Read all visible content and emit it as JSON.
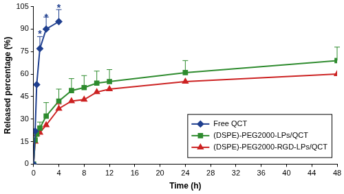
{
  "chart_data": {
    "type": "line",
    "x_label": "Time (h)",
    "y_label": "Released percentage (%)",
    "xlim": [
      0,
      48
    ],
    "xticks": [
      0,
      4,
      8,
      12,
      16,
      20,
      24,
      28,
      32,
      36,
      40,
      44,
      48
    ],
    "ylim": [
      0,
      105
    ],
    "yticks": [
      0,
      15,
      30,
      45,
      60,
      75,
      90,
      105
    ],
    "grid": false,
    "legend": "lower right",
    "series": [
      {
        "name": "Free QCT",
        "color": "#1f3f8f",
        "marker": "diamond",
        "x": [
          0,
          0.25,
          0.5,
          1,
          2,
          4
        ],
        "values": [
          0,
          22,
          53,
          77,
          90,
          95
        ],
        "errors": [
          null,
          null,
          null,
          8,
          8,
          8
        ]
      },
      {
        "name": "(DSPE)-PEG2000-LPs/QCT",
        "color": "#2e8b2e",
        "marker": "square",
        "x": [
          0,
          0.25,
          0.5,
          1,
          2,
          4,
          6,
          8,
          10,
          12,
          24,
          48
        ],
        "values": [
          0,
          16,
          20,
          24,
          32,
          42,
          49,
          51,
          54,
          55,
          61,
          69
        ],
        "errors": [
          null,
          null,
          null,
          4,
          9,
          8,
          8,
          8,
          8,
          8,
          8,
          9
        ]
      },
      {
        "name": "(DSPE)-PEG2000-RGD-LPs/QCT",
        "color": "#cc2222",
        "marker": "triangle",
        "x": [
          0,
          0.25,
          0.5,
          1,
          2,
          4,
          6,
          8,
          10,
          12,
          24,
          48
        ],
        "values": [
          0,
          15,
          20,
          21,
          26,
          37,
          42,
          43,
          48,
          50,
          55,
          60
        ],
        "errors": [
          null,
          null,
          null,
          null,
          null,
          3,
          null,
          null,
          null,
          null,
          null,
          null
        ]
      }
    ],
    "annotations": [
      {
        "text": "*",
        "x": 1,
        "y": 88
      },
      {
        "text": "*",
        "x": 2,
        "y": 99
      },
      {
        "text": "*",
        "x": 4,
        "y": 105
      }
    ]
  }
}
